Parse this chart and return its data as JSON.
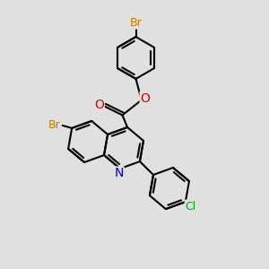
{
  "background_color": "#e0e0e0",
  "bond_color": "#000000",
  "bond_width": 1.5,
  "atom_colors": {
    "Br_top": "#cc7700",
    "Br_left": "#cc7700",
    "O_carbonyl": "#dd0000",
    "O_ester": "#dd0000",
    "N": "#0000cc",
    "Cl": "#00aa00"
  },
  "figsize": [
    3.0,
    3.0
  ],
  "dpi": 100
}
